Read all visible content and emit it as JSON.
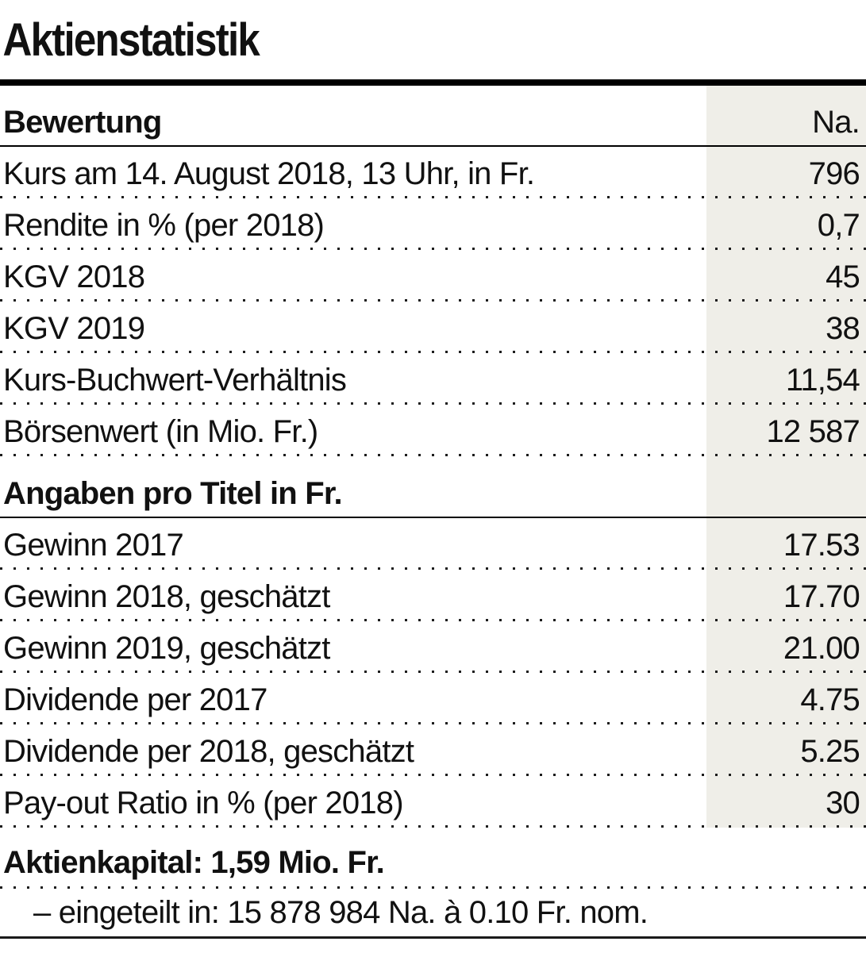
{
  "colors": {
    "value_column_background": "#efeee8",
    "rule_color": "#000000",
    "text_color": "#111111"
  },
  "chart_data": {
    "type": "table",
    "title": "Aktienstatistik",
    "layout": {
      "value_column_highlighted": true,
      "row_separators": "dotted-leaders"
    },
    "sections": [
      {
        "header": "Bewertung",
        "unit": "Na.",
        "rows": [
          {
            "label": "Kurs am 14. August 2018, 13 Uhr, in Fr.",
            "value": "796"
          },
          {
            "label": "Rendite in % (per 2018)",
            "value": "0,7"
          },
          {
            "label": "KGV 2018",
            "value": "45"
          },
          {
            "label": "KGV 2019",
            "value": "38"
          },
          {
            "label": "Kurs-Buchwert-Verhältnis",
            "value": "11,54"
          },
          {
            "label": "Börsenwert (in Mio. Fr.)",
            "value": "12 587"
          }
        ]
      },
      {
        "header": "Angaben pro Titel in Fr.",
        "unit": "",
        "rows": [
          {
            "label": "Gewinn 2017",
            "value": "17.53"
          },
          {
            "label": "Gewinn 2018, geschätzt",
            "value": "17.70"
          },
          {
            "label": "Gewinn 2019, geschätzt",
            "value": "21.00"
          },
          {
            "label": "Dividende per 2017",
            "value": "4.75"
          },
          {
            "label": "Dividende per 2018, geschätzt",
            "value": "5.25"
          },
          {
            "label": "Pay-out Ratio in % (per 2018)",
            "value": "30"
          }
        ]
      }
    ],
    "footer": {
      "bold_line": "Aktienkapital: 1,59 Mio. Fr.",
      "detail_line": "– eingeteilt in: 15 878 984 Na. à 0.10 Fr. nom."
    }
  }
}
